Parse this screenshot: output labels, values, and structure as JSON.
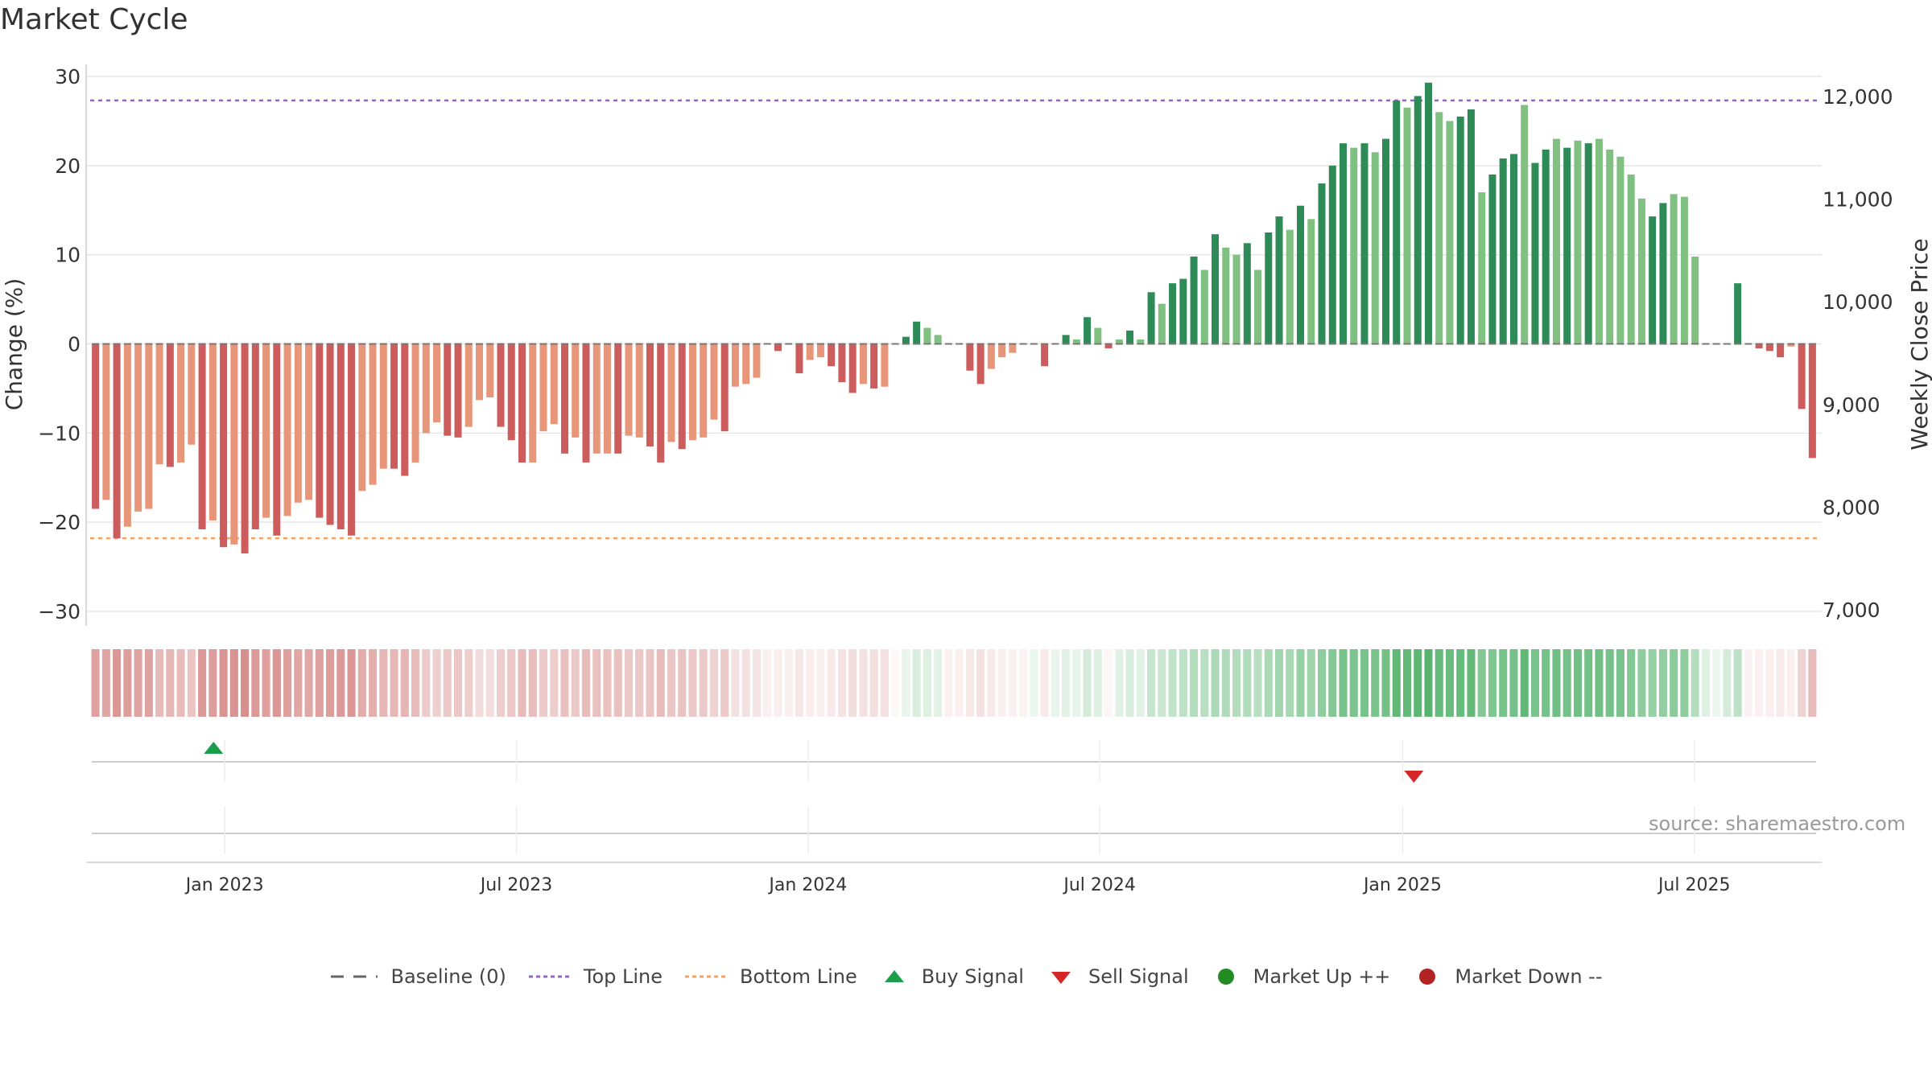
{
  "title": "Market Cycle",
  "source": "source: sharemaestro.com",
  "colors": {
    "neg_strong": "#cd5c5c",
    "neg_light": "#e8967a",
    "pos_strong": "#2e8b57",
    "pos_light": "#80c080",
    "top_line": "#9467bd",
    "bottom_line": "#f4a460",
    "buy": "#1a9e4a",
    "sell": "#d62728",
    "market_up": "#228b22",
    "market_down": "#b22222"
  },
  "legend": [
    {
      "label": "Baseline (0)",
      "icon": "baseline-dash"
    },
    {
      "label": "Top Line",
      "icon": "top-line-dotted"
    },
    {
      "label": "Bottom Line",
      "icon": "bottom-line-dotted"
    },
    {
      "label": "Buy Signal",
      "icon": "triangle-up"
    },
    {
      "label": "Sell Signal",
      "icon": "triangle-down"
    },
    {
      "label": "Market Up ++",
      "icon": "circle-green"
    },
    {
      "label": "Market Down --",
      "icon": "circle-red"
    }
  ],
  "chart_data": {
    "type": "bar",
    "ylabel": "Change (%)",
    "y2label": "Weekly Close Price",
    "ylim": [
      -30,
      30
    ],
    "yticks": [
      "30",
      "20",
      "10",
      "0",
      "−10",
      "−20",
      "−30"
    ],
    "y2lim": [
      7000,
      12000
    ],
    "y2ticks": [
      "12,000",
      "11,000",
      "10,000",
      "9,000",
      "8,000",
      "7,000"
    ],
    "top_line": 27.3,
    "bottom_line": -21.8,
    "x_start": "2022-10-10",
    "x_end": "2025-09-22",
    "xticks": [
      {
        "label": "Jan 2023",
        "date": "2023-01-02"
      },
      {
        "label": "Jul 2023",
        "date": "2023-07-03"
      },
      {
        "label": "Jan 2024",
        "date": "2024-01-01"
      },
      {
        "label": "Jul 2024",
        "date": "2024-07-01"
      },
      {
        "label": "Jan 2025",
        "date": "2025-01-06"
      },
      {
        "label": "Jul 2025",
        "date": "2025-07-07"
      }
    ],
    "values": [
      -18.5,
      -17.5,
      -21.8,
      -20.5,
      -18.8,
      -18.5,
      -13.5,
      -13.8,
      -13.3,
      -11.3,
      -20.8,
      -19.8,
      -22.8,
      -22.5,
      -23.5,
      -20.8,
      -19.5,
      -21.5,
      -19.3,
      -17.8,
      -17.5,
      -19.5,
      -20.3,
      -20.8,
      -21.5,
      -16.5,
      -15.8,
      -14.0,
      -14.0,
      -14.8,
      -13.3,
      -10.0,
      -8.8,
      -10.3,
      -10.5,
      -9.3,
      -6.3,
      -6.0,
      -9.3,
      -10.8,
      -13.3,
      -13.3,
      -9.8,
      -9.0,
      -12.3,
      -10.5,
      -13.3,
      -12.3,
      -12.3,
      -12.3,
      -10.3,
      -10.5,
      -11.5,
      -13.3,
      -11.0,
      -11.8,
      -10.8,
      -10.5,
      -8.5,
      -9.8,
      -4.8,
      -4.5,
      -3.8,
      0,
      -0.8,
      0,
      -3.3,
      -1.8,
      -1.5,
      -2.5,
      -4.3,
      -5.5,
      -4.5,
      -5.0,
      -4.8,
      0,
      0.8,
      2.5,
      1.8,
      1.0,
      0,
      0,
      -3.0,
      -4.5,
      -2.8,
      -1.5,
      -1.0,
      0,
      0,
      -2.5,
      0,
      1.0,
      0.5,
      3.0,
      1.8,
      -0.5,
      0.5,
      1.5,
      0.5,
      5.8,
      4.5,
      6.8,
      7.3,
      9.8,
      8.3,
      12.3,
      10.8,
      10.0,
      11.3,
      8.3,
      12.5,
      14.3,
      12.8,
      15.5,
      14.0,
      18.0,
      20.0,
      22.5,
      22.0,
      22.5,
      21.5,
      23.0,
      27.3,
      26.5,
      27.8,
      29.3,
      26.0,
      25.0,
      25.5,
      26.3,
      17.0,
      19.0,
      20.8,
      21.3,
      26.8,
      20.3,
      21.8,
      23.0,
      22.0,
      22.8,
      22.5,
      23.0,
      21.8,
      21.0,
      19.0,
      16.3,
      14.3,
      15.8,
      16.8,
      16.5,
      9.8,
      0,
      0,
      0,
      6.8,
      0,
      -0.5,
      -0.8,
      -1.5,
      -0.3,
      -7.3,
      -12.8
    ],
    "shades": [
      "s",
      "l",
      "s",
      "l",
      "l",
      "l",
      "l",
      "s",
      "l",
      "l",
      "s",
      "l",
      "s",
      "l",
      "s",
      "s",
      "l",
      "s",
      "l",
      "l",
      "l",
      "s",
      "s",
      "s",
      "s",
      "l",
      "l",
      "l",
      "s",
      "s",
      "l",
      "l",
      "l",
      "s",
      "s",
      "l",
      "l",
      "l",
      "s",
      "s",
      "s",
      "l",
      "l",
      "l",
      "s",
      "l",
      "s",
      "l",
      "l",
      "s",
      "l",
      "l",
      "s",
      "s",
      "l",
      "s",
      "l",
      "l",
      "l",
      "s",
      "l",
      "l",
      "l",
      "l",
      "s",
      "l",
      "s",
      "l",
      "l",
      "s",
      "s",
      "s",
      "l",
      "s",
      "l",
      "l",
      "s",
      "s",
      "l",
      "l",
      "l",
      "l",
      "s",
      "s",
      "l",
      "l",
      "l",
      "l",
      "l",
      "s",
      "l",
      "s",
      "l",
      "s",
      "l",
      "s",
      "l",
      "s",
      "l",
      "s",
      "l",
      "s",
      "s",
      "s",
      "l",
      "s",
      "l",
      "l",
      "s",
      "l",
      "s",
      "s",
      "l",
      "s",
      "l",
      "s",
      "s",
      "s",
      "l",
      "s",
      "l",
      "s",
      "s",
      "l",
      "s",
      "s",
      "l",
      "l",
      "s",
      "s",
      "l",
      "s",
      "s",
      "s",
      "l",
      "s",
      "s",
      "l",
      "s",
      "l",
      "s",
      "l",
      "l",
      "l",
      "l",
      "l",
      "s",
      "s",
      "l",
      "l",
      "l",
      "l",
      "l",
      "l",
      "s",
      "l",
      "s",
      "s",
      "s",
      "l",
      "s",
      "s"
    ],
    "heat": [
      -0.62,
      -0.6,
      -0.7,
      -0.66,
      -0.62,
      -0.62,
      -0.46,
      -0.48,
      -0.45,
      -0.4,
      -0.68,
      -0.65,
      -0.72,
      -0.72,
      -0.75,
      -0.68,
      -0.64,
      -0.7,
      -0.64,
      -0.6,
      -0.59,
      -0.64,
      -0.66,
      -0.68,
      -0.7,
      -0.56,
      -0.54,
      -0.48,
      -0.48,
      -0.5,
      -0.45,
      -0.35,
      -0.32,
      -0.36,
      -0.37,
      -0.33,
      -0.24,
      -0.23,
      -0.33,
      -0.37,
      -0.45,
      -0.45,
      -0.35,
      -0.33,
      -0.42,
      -0.36,
      -0.45,
      -0.42,
      -0.42,
      -0.42,
      -0.36,
      -0.37,
      -0.4,
      -0.45,
      -0.38,
      -0.4,
      -0.37,
      -0.36,
      -0.3,
      -0.35,
      -0.2,
      -0.2,
      -0.18,
      -0.1,
      -0.12,
      -0.1,
      -0.16,
      -0.12,
      -0.11,
      -0.14,
      -0.19,
      -0.22,
      -0.2,
      -0.21,
      -0.2,
      -0.05,
      0.12,
      0.2,
      0.18,
      0.15,
      -0.1,
      -0.1,
      -0.15,
      -0.2,
      -0.14,
      -0.1,
      -0.1,
      -0.08,
      0.1,
      -0.14,
      0.12,
      0.16,
      0.14,
      0.22,
      0.18,
      -0.06,
      0.16,
      0.2,
      0.16,
      0.3,
      0.28,
      0.33,
      0.35,
      0.4,
      0.38,
      0.45,
      0.42,
      0.4,
      0.43,
      0.38,
      0.45,
      0.5,
      0.47,
      0.55,
      0.52,
      0.6,
      0.65,
      0.72,
      0.7,
      0.72,
      0.7,
      0.74,
      0.85,
      0.83,
      0.86,
      0.9,
      0.82,
      0.8,
      0.81,
      0.83,
      0.65,
      0.68,
      0.72,
      0.73,
      0.84,
      0.7,
      0.73,
      0.76,
      0.73,
      0.75,
      0.74,
      0.76,
      0.73,
      0.71,
      0.66,
      0.6,
      0.55,
      0.58,
      0.61,
      0.6,
      0.4,
      0.18,
      0.1,
      0.22,
      0.35,
      -0.08,
      -0.1,
      -0.12,
      -0.14,
      -0.1,
      -0.3,
      -0.45
    ],
    "price_series": "not drawn",
    "buy_signals": [
      "2022-12-26"
    ],
    "sell_signals": [
      "2025-01-13"
    ]
  }
}
